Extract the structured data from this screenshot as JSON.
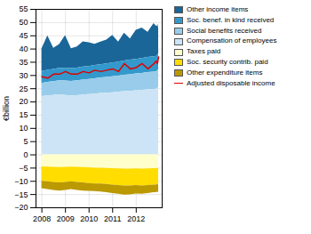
{
  "chart_data": {
    "type": "area",
    "stacked": true,
    "grid": true,
    "legend": "right",
    "ylabel": "€billion",
    "xlim": [
      2007.75,
      2013.1
    ],
    "xticks": [
      2008,
      2009,
      2010,
      2011,
      2012
    ],
    "ylim": [
      -20,
      55
    ],
    "yticks": [
      -20,
      -15,
      -10,
      -5,
      0,
      5,
      10,
      15,
      20,
      25,
      30,
      35,
      40,
      45,
      50,
      55
    ],
    "x": [
      2008.0,
      2008.25,
      2008.5,
      2008.75,
      2009.0,
      2009.25,
      2009.5,
      2009.75,
      2010.0,
      2010.25,
      2010.5,
      2010.75,
      2011.0,
      2011.25,
      2011.5,
      2011.75,
      2012.0,
      2012.25,
      2012.5,
      2012.75,
      2012.85,
      2012.9,
      2012.92,
      2012.95
    ],
    "series": [
      {
        "name": "Other income items",
        "type": "area",
        "color": "#1a6699",
        "values": [
          8.5,
          13.0,
          8.0,
          9.0,
          12.5,
          7.5,
          8.0,
          9.5,
          9.0,
          8.0,
          8.5,
          9.0,
          10.5,
          7.5,
          10.5,
          8.0,
          11.0,
          11.5,
          9.5,
          12.5,
          11.5,
          11.0,
          11.5,
          9.5
        ]
      },
      {
        "name": "Soc. benef. in kind received",
        "type": "area",
        "color": "#3399cc",
        "values": [
          4.5,
          4.6,
          4.6,
          4.7,
          4.7,
          4.8,
          4.8,
          4.9,
          4.9,
          5.0,
          5.0,
          5.1,
          5.2,
          5.3,
          5.4,
          5.5,
          5.5,
          5.6,
          5.7,
          5.8,
          5.8,
          5.9,
          6.0,
          6.0
        ]
      },
      {
        "name": "Social benefits received",
        "type": "area",
        "color": "#99ccea",
        "values": [
          5.0,
          5.1,
          5.2,
          5.3,
          5.4,
          5.5,
          5.6,
          5.7,
          5.7,
          5.8,
          5.9,
          6.0,
          6.0,
          6.1,
          6.2,
          6.3,
          6.4,
          6.4,
          6.5,
          6.6,
          6.6,
          6.7,
          6.7,
          6.8
        ]
      },
      {
        "name": "Compensation of employees",
        "type": "area",
        "color": "#cce4f5",
        "values": [
          22.0,
          22.3,
          22.5,
          22.7,
          22.5,
          22.3,
          22.4,
          22.6,
          22.8,
          23.0,
          23.2,
          23.3,
          23.5,
          23.7,
          23.9,
          24.0,
          24.2,
          24.4,
          24.6,
          24.7,
          24.8,
          25.0,
          25.2,
          25.3
        ]
      },
      {
        "name": "Taxes paid",
        "type": "area",
        "color": "#ffffcc",
        "values": [
          -4.5,
          -4.6,
          -4.7,
          -4.8,
          -4.7,
          -4.6,
          -4.7,
          -4.8,
          -4.9,
          -5.0,
          -5.0,
          -5.1,
          -5.2,
          -5.3,
          -5.4,
          -5.4,
          -5.3,
          -5.4,
          -5.3,
          -5.2,
          -5.2,
          -5.1,
          -5.2,
          -5.1
        ]
      },
      {
        "name": "Soc. security contrib. paid",
        "type": "area",
        "color": "#ffdd00",
        "values": [
          -5.5,
          -5.6,
          -5.7,
          -5.8,
          -5.7,
          -5.6,
          -5.7,
          -5.8,
          -5.9,
          -6.0,
          -6.0,
          -6.1,
          -6.2,
          -6.3,
          -6.4,
          -6.4,
          -6.3,
          -6.4,
          -6.3,
          -6.2,
          -6.2,
          -6.1,
          -6.2,
          -6.1
        ]
      },
      {
        "name": "Other expenditure items",
        "type": "area",
        "color": "#bb9900",
        "values": [
          -2.8,
          -2.9,
          -3.0,
          -3.1,
          -3.0,
          -2.9,
          -3.0,
          -3.1,
          -3.0,
          -2.9,
          -3.0,
          -3.1,
          -3.2,
          -3.3,
          -3.4,
          -3.3,
          -3.2,
          -3.1,
          -3.0,
          -2.9,
          -2.9,
          -2.8,
          -2.9,
          -3.0
        ]
      },
      {
        "name": "Adjusted disposable income",
        "type": "line",
        "color": "#dd0000",
        "values": [
          29.5,
          29.0,
          30.5,
          30.5,
          31.5,
          30.5,
          30.5,
          31.5,
          31.0,
          32.0,
          31.5,
          32.0,
          32.5,
          31.5,
          34.5,
          32.5,
          33.0,
          34.5,
          32.5,
          34.5,
          35.5,
          34.5,
          35.5,
          37.0
        ]
      }
    ]
  }
}
